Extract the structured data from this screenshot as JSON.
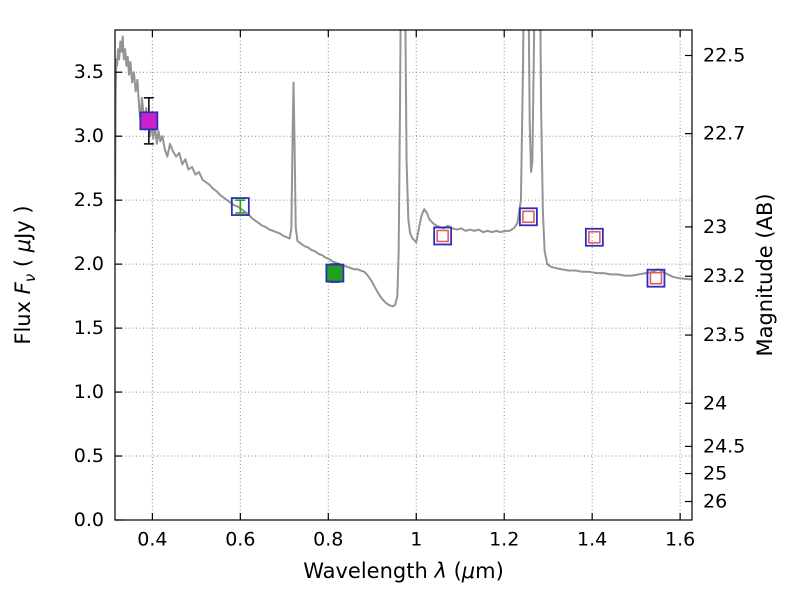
{
  "figure": {
    "background": "#ffffff",
    "frame_color": "#000000",
    "grid_color": "#8a8a8a"
  },
  "chart_data": {
    "type": "line",
    "title": "",
    "xlabel": "Wavelength λ (μm)",
    "ylabel": "Flux Fν ( μJy )",
    "y2label": "Magnitude (AB)",
    "xlim": [
      0.315,
      1.627
    ],
    "ylim": [
      0.0,
      3.83
    ],
    "grid": true,
    "legend": false,
    "xticks": [
      0.4,
      0.6,
      0.8,
      1.0,
      1.2,
      1.4,
      1.6
    ],
    "xtick_labels": [
      "0.4",
      "0.6",
      "0.8",
      "1",
      "1.2",
      "1.4",
      "1.6"
    ],
    "yticks": [
      0.0,
      0.5,
      1.0,
      1.5,
      2.0,
      2.5,
      3.0,
      3.5
    ],
    "ytick_labels": [
      "0.0",
      "0.5",
      "1.0",
      "1.5",
      "2.0",
      "2.5",
      "3.0",
      "3.5"
    ],
    "y2ticks_mag": [
      22.5,
      22.7,
      23,
      23.2,
      23.5,
      24,
      24.5,
      25,
      26
    ],
    "y2tick_labels": [
      "22.5",
      "22.7",
      "23",
      "23.2",
      "23.5",
      "24",
      "24.5",
      "25",
      "26"
    ],
    "mag_zero_point": 23.9,
    "xlabel_rich": [
      {
        "t": "Wavelength  "
      },
      {
        "t": "λ",
        "i": true
      },
      {
        "t": " ("
      },
      {
        "t": "μ",
        "i": true
      },
      {
        "t": "m)"
      }
    ],
    "ylabel_rich": [
      {
        "t": "Flux  "
      },
      {
        "t": "F",
        "i": true
      },
      {
        "t": "ν",
        "i": true,
        "sub": true
      },
      {
        "t": "  ( "
      },
      {
        "t": "μ",
        "i": true
      },
      {
        "t": "Jy )"
      }
    ],
    "y2label_rich": [
      {
        "t": "Magnitude (AB)"
      }
    ],
    "spectrum_color": "#949494",
    "spectrum_width": 2,
    "spectrum": [
      [
        0.315,
        2.25
      ],
      [
        0.3165,
        3.3
      ],
      [
        0.318,
        3.6
      ],
      [
        0.32,
        3.55
      ],
      [
        0.322,
        3.68
      ],
      [
        0.3245,
        3.6
      ],
      [
        0.327,
        3.74
      ],
      [
        0.33,
        3.66
      ],
      [
        0.3325,
        3.78
      ],
      [
        0.335,
        3.6
      ],
      [
        0.338,
        3.68
      ],
      [
        0.341,
        3.55
      ],
      [
        0.344,
        3.62
      ],
      [
        0.347,
        3.48
      ],
      [
        0.35,
        3.58
      ],
      [
        0.354,
        3.42
      ],
      [
        0.358,
        3.5
      ],
      [
        0.362,
        3.35
      ],
      [
        0.366,
        3.44
      ],
      [
        0.37,
        3.22
      ],
      [
        0.373,
        3.12
      ],
      [
        0.376,
        3.3
      ],
      [
        0.38,
        3.18
      ],
      [
        0.383,
        3.05
      ],
      [
        0.386,
        3.22
      ],
      [
        0.389,
        3.08
      ],
      [
        0.392,
        3.15
      ],
      [
        0.395,
        3.0
      ],
      [
        0.398,
        3.12
      ],
      [
        0.402,
        2.98
      ],
      [
        0.406,
        3.08
      ],
      [
        0.41,
        2.94
      ],
      [
        0.414,
        3.04
      ],
      [
        0.418,
        2.96
      ],
      [
        0.423,
        3.0
      ],
      [
        0.428,
        2.9
      ],
      [
        0.434,
        2.84
      ],
      [
        0.44,
        2.94
      ],
      [
        0.447,
        2.88
      ],
      [
        0.454,
        2.84
      ],
      [
        0.461,
        2.87
      ],
      [
        0.468,
        2.78
      ],
      [
        0.475,
        2.82
      ],
      [
        0.482,
        2.74
      ],
      [
        0.49,
        2.76
      ],
      [
        0.498,
        2.7
      ],
      [
        0.506,
        2.72
      ],
      [
        0.514,
        2.66
      ],
      [
        0.522,
        2.64
      ],
      [
        0.53,
        2.62
      ],
      [
        0.538,
        2.59
      ],
      [
        0.546,
        2.57
      ],
      [
        0.554,
        2.54
      ],
      [
        0.562,
        2.52
      ],
      [
        0.57,
        2.5
      ],
      [
        0.578,
        2.48
      ],
      [
        0.586,
        2.46
      ],
      [
        0.594,
        2.45
      ],
      [
        0.602,
        2.43
      ],
      [
        0.61,
        2.41
      ],
      [
        0.618,
        2.39
      ],
      [
        0.626,
        2.36
      ],
      [
        0.634,
        2.34
      ],
      [
        0.642,
        2.32
      ],
      [
        0.65,
        2.3
      ],
      [
        0.658,
        2.29
      ],
      [
        0.666,
        2.27
      ],
      [
        0.674,
        2.26
      ],
      [
        0.682,
        2.25
      ],
      [
        0.69,
        2.24
      ],
      [
        0.698,
        2.22
      ],
      [
        0.706,
        2.21
      ],
      [
        0.712,
        2.2
      ],
      [
        0.716,
        2.28
      ],
      [
        0.719,
        3.05
      ],
      [
        0.721,
        3.42
      ],
      [
        0.723,
        3.0
      ],
      [
        0.726,
        2.28
      ],
      [
        0.73,
        2.18
      ],
      [
        0.738,
        2.16
      ],
      [
        0.746,
        2.14
      ],
      [
        0.754,
        2.13
      ],
      [
        0.762,
        2.11
      ],
      [
        0.77,
        2.1
      ],
      [
        0.778,
        2.08
      ],
      [
        0.786,
        2.07
      ],
      [
        0.794,
        2.05
      ],
      [
        0.802,
        2.04
      ],
      [
        0.81,
        2.02
      ],
      [
        0.818,
        2.01
      ],
      [
        0.826,
        2.0
      ],
      [
        0.834,
        1.99
      ],
      [
        0.842,
        1.98
      ],
      [
        0.85,
        1.97
      ],
      [
        0.858,
        1.96
      ],
      [
        0.866,
        1.96
      ],
      [
        0.874,
        1.95
      ],
      [
        0.882,
        1.94
      ],
      [
        0.89,
        1.91
      ],
      [
        0.898,
        1.87
      ],
      [
        0.906,
        1.82
      ],
      [
        0.914,
        1.77
      ],
      [
        0.922,
        1.73
      ],
      [
        0.93,
        1.7
      ],
      [
        0.938,
        1.68
      ],
      [
        0.946,
        1.67
      ],
      [
        0.952,
        1.68
      ],
      [
        0.957,
        1.75
      ],
      [
        0.96,
        2.1
      ],
      [
        0.963,
        3.2
      ],
      [
        0.966,
        4.6
      ],
      [
        0.97,
        5.2
      ],
      [
        0.974,
        4.4
      ],
      [
        0.978,
        2.8
      ],
      [
        0.982,
        2.35
      ],
      [
        0.986,
        2.24
      ],
      [
        0.992,
        2.2
      ],
      [
        1.0,
        2.17
      ],
      [
        1.006,
        2.28
      ],
      [
        1.012,
        2.38
      ],
      [
        1.018,
        2.43
      ],
      [
        1.024,
        2.4
      ],
      [
        1.03,
        2.35
      ],
      [
        1.038,
        2.32
      ],
      [
        1.046,
        2.3
      ],
      [
        1.054,
        2.29
      ],
      [
        1.062,
        2.28
      ],
      [
        1.072,
        2.3
      ],
      [
        1.082,
        2.28
      ],
      [
        1.092,
        2.27
      ],
      [
        1.102,
        2.28
      ],
      [
        1.112,
        2.26
      ],
      [
        1.122,
        2.27
      ],
      [
        1.132,
        2.26
      ],
      [
        1.142,
        2.27
      ],
      [
        1.152,
        2.25
      ],
      [
        1.162,
        2.26
      ],
      [
        1.172,
        2.25
      ],
      [
        1.182,
        2.26
      ],
      [
        1.192,
        2.25
      ],
      [
        1.202,
        2.26
      ],
      [
        1.212,
        2.26
      ],
      [
        1.222,
        2.28
      ],
      [
        1.23,
        2.32
      ],
      [
        1.238,
        2.5
      ],
      [
        1.243,
        3.6
      ],
      [
        1.247,
        5.2
      ],
      [
        1.251,
        5.8
      ],
      [
        1.254,
        4.6
      ],
      [
        1.258,
        3.1
      ],
      [
        1.261,
        2.72
      ],
      [
        1.264,
        2.8
      ],
      [
        1.268,
        3.8
      ],
      [
        1.272,
        5.4
      ],
      [
        1.276,
        5.8
      ],
      [
        1.28,
        4.8
      ],
      [
        1.284,
        3.2
      ],
      [
        1.288,
        2.4
      ],
      [
        1.292,
        2.1
      ],
      [
        1.298,
        2.0
      ],
      [
        1.306,
        1.98
      ],
      [
        1.316,
        1.97
      ],
      [
        1.33,
        1.96
      ],
      [
        1.346,
        1.95
      ],
      [
        1.362,
        1.95
      ],
      [
        1.378,
        1.94
      ],
      [
        1.394,
        1.94
      ],
      [
        1.41,
        1.93
      ],
      [
        1.426,
        1.93
      ],
      [
        1.442,
        1.92
      ],
      [
        1.458,
        1.92
      ],
      [
        1.474,
        1.91
      ],
      [
        1.49,
        1.91
      ],
      [
        1.506,
        1.92
      ],
      [
        1.522,
        1.93
      ],
      [
        1.538,
        1.94
      ],
      [
        1.55,
        1.96
      ],
      [
        1.56,
        1.94
      ],
      [
        1.572,
        1.92
      ],
      [
        1.584,
        1.9
      ],
      [
        1.598,
        1.89
      ],
      [
        1.612,
        1.885
      ],
      [
        1.627,
        1.88
      ]
    ],
    "photometry": [
      {
        "x": 0.392,
        "flux": 3.12,
        "fill": "#cc22cc",
        "edge": "#2e2eb8",
        "inner": "none",
        "err": 0.18,
        "err_color": "#111111"
      },
      {
        "x": 0.6,
        "flux": 2.45,
        "fill": "none",
        "edge": "#2e2eb8",
        "inner": "none",
        "err": 0.05,
        "err_color": "#22a022"
      },
      {
        "x": 0.815,
        "flux": 1.93,
        "fill": "#1fa11f",
        "edge": "#2e2eb8",
        "inner": "none",
        "err": 0.07,
        "err_color": "#111111"
      },
      {
        "x": 1.06,
        "flux": 2.22,
        "fill": "none",
        "edge": "#2e2eb8",
        "inner": "#e05a6a",
        "err": null,
        "err_color": "none"
      },
      {
        "x": 1.255,
        "flux": 2.37,
        "fill": "none",
        "edge": "#2e2eb8",
        "inner": "#e05a6a",
        "err": null,
        "err_color": "none"
      },
      {
        "x": 1.405,
        "flux": 2.21,
        "fill": "none",
        "edge": "#2e2eb8",
        "inner": "#e05a6a",
        "err": null,
        "err_color": "none"
      },
      {
        "x": 1.545,
        "flux": 1.89,
        "fill": "none",
        "edge": "#2e2eb8",
        "inner": "#e05a6a",
        "err": null,
        "err_color": "none"
      }
    ]
  }
}
